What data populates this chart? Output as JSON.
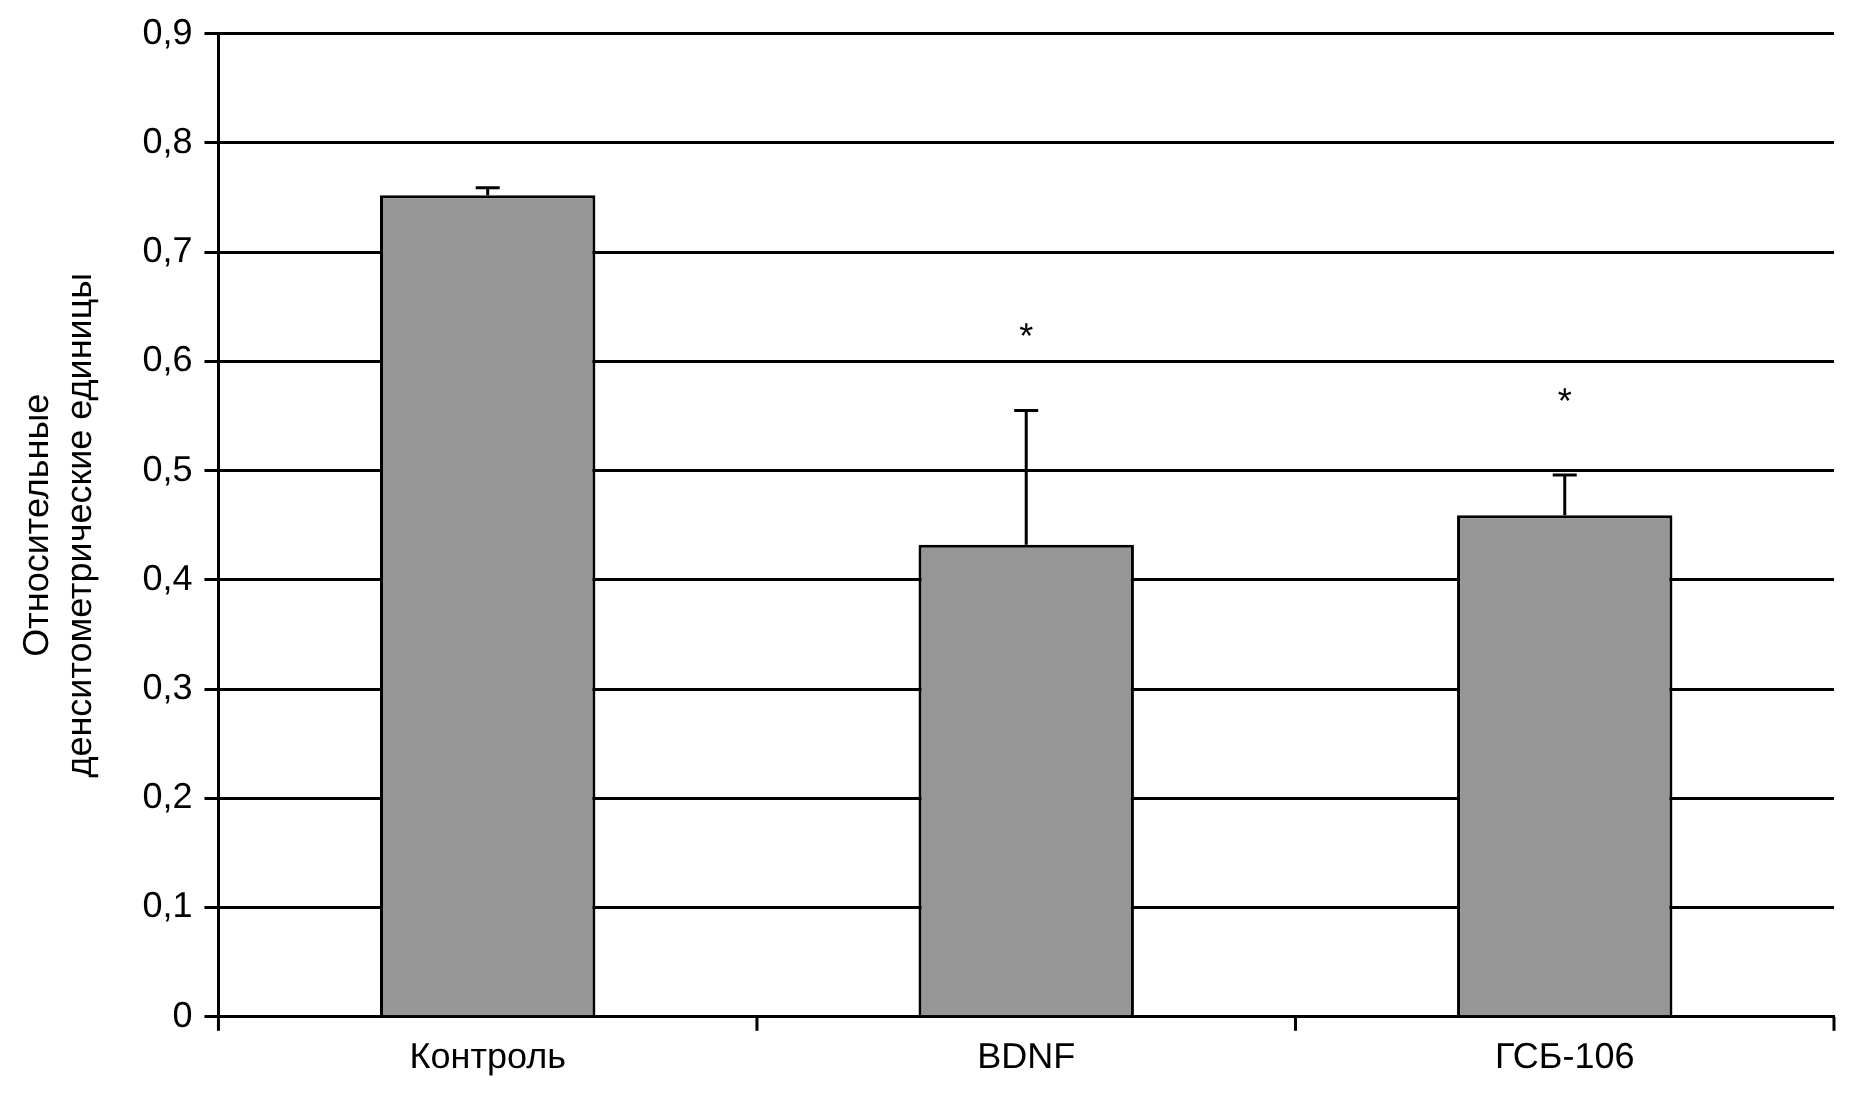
{
  "chart_data": {
    "type": "bar",
    "ylabel": "Относительные\nденситометрические единицы",
    "categories": [
      "Контроль",
      "BDNF",
      "ГСБ-106"
    ],
    "values": [
      0.752,
      0.432,
      0.459
    ],
    "color": "#969696",
    "errors": [
      [
        0.752,
        0.759
      ],
      [
        0.432,
        0.555
      ],
      [
        0.459,
        0.496
      ]
    ],
    "ylim": [
      0,
      0.9
    ],
    "yticks": [
      {
        "value": 0,
        "label": "0"
      },
      {
        "value": 0.1,
        "label": "0,1"
      },
      {
        "value": 0.2,
        "label": "0,2"
      },
      {
        "value": 0.3,
        "label": "0,3"
      },
      {
        "value": 0.4,
        "label": "0,4"
      },
      {
        "value": 0.5,
        "label": "0,5"
      },
      {
        "value": 0.6,
        "label": "0,6"
      },
      {
        "value": 0.7,
        "label": "0,7"
      },
      {
        "value": 0.8,
        "label": "0,8"
      },
      {
        "value": 0.9,
        "label": "0,9"
      }
    ],
    "grid": "y",
    "annotations": [
      "*",
      "*"
    ]
  }
}
